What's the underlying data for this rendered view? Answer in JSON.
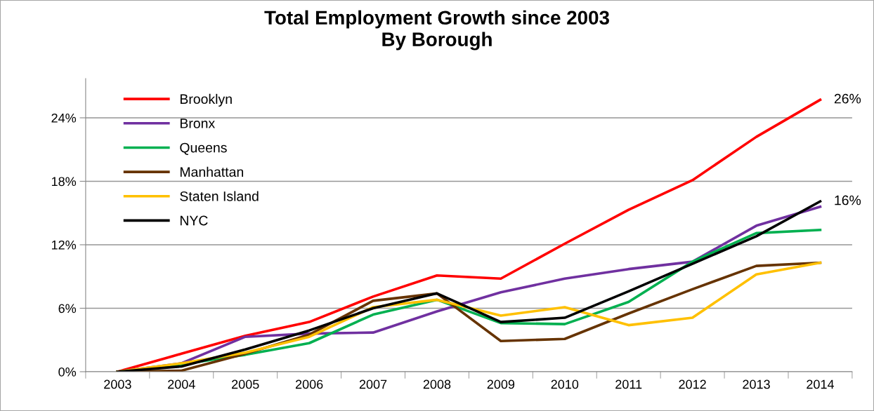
{
  "chart_data": {
    "type": "line",
    "title": "Total Employment Growth since 2003\nBy Borough",
    "categories": [
      "2003",
      "2004",
      "2005",
      "2006",
      "2007",
      "2008",
      "2009",
      "2010",
      "2011",
      "2012",
      "2013",
      "2014"
    ],
    "series": [
      {
        "name": "Brooklyn",
        "color": "#ff0000",
        "values": [
          0,
          1.7,
          3.4,
          4.7,
          7.1,
          9.1,
          8.8,
          12.1,
          15.3,
          18.1,
          22.2,
          25.7
        ]
      },
      {
        "name": "Bronx",
        "color": "#7030a0",
        "values": [
          0,
          0.8,
          3.3,
          3.6,
          3.7,
          5.7,
          7.5,
          8.8,
          9.7,
          10.4,
          13.8,
          15.6
        ]
      },
      {
        "name": "Queens",
        "color": "#00b050",
        "values": [
          0,
          0.7,
          1.6,
          2.7,
          5.4,
          6.8,
          4.6,
          4.5,
          6.6,
          10.4,
          13.1,
          13.4
        ]
      },
      {
        "name": "Manhattan",
        "color": "#663300",
        "values": [
          0,
          0.1,
          1.7,
          3.5,
          6.7,
          7.4,
          2.9,
          3.1,
          5.5,
          7.8,
          10.0,
          10.3
        ]
      },
      {
        "name": "Staten Island",
        "color": "#ffc000",
        "values": [
          0,
          0.8,
          1.8,
          3.3,
          6.1,
          6.8,
          5.3,
          6.1,
          4.4,
          5.1,
          9.2,
          10.3
        ]
      },
      {
        "name": "NYC",
        "color": "#000000",
        "values": [
          0,
          0.5,
          2.1,
          3.9,
          6.0,
          7.4,
          4.7,
          5.1,
          7.6,
          10.2,
          12.8,
          16.1
        ]
      }
    ],
    "ylim": [
      0,
      27.7
    ],
    "yticks": [
      {
        "value": 0,
        "label": "0%"
      },
      {
        "value": 6,
        "label": "6%"
      },
      {
        "value": 12,
        "label": "12%"
      },
      {
        "value": 18,
        "label": "18%"
      },
      {
        "value": 24,
        "label": "24%"
      }
    ],
    "grid": "y",
    "legend": "top left",
    "marker": "none",
    "line_style": "solid",
    "annotations": [
      {
        "text": "26%",
        "x": "2014",
        "y": 25.7
      },
      {
        "text": "16%",
        "x": "2014",
        "y": 16.1
      }
    ]
  }
}
